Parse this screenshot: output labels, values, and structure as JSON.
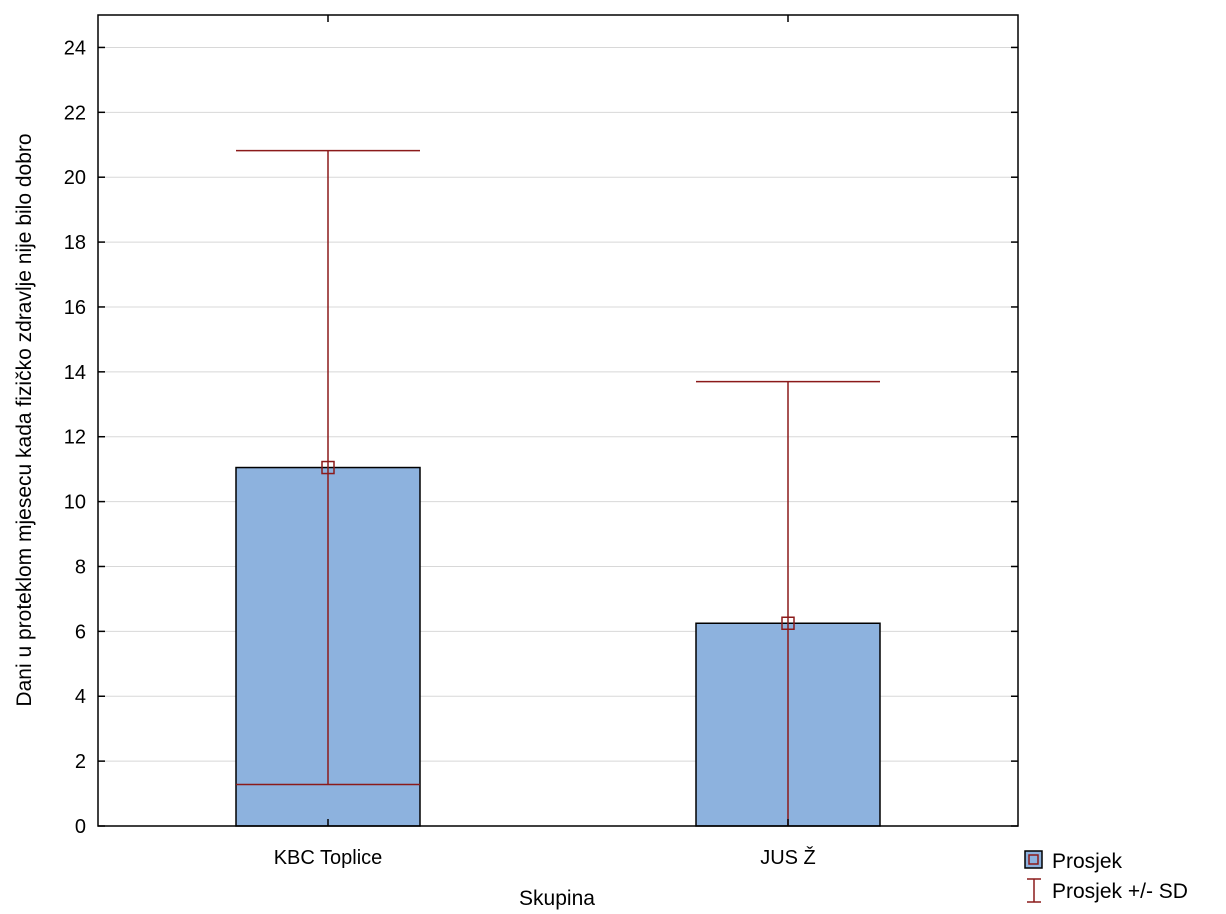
{
  "chart_data": {
    "type": "bar",
    "title": "",
    "xlabel": "Skupina",
    "ylabel": "Dani u proteklom mjesecu kada fizičko zdravlje nije bilo dobro",
    "categories": [
      "KBC Toplice",
      "JUS Ž"
    ],
    "ylim": [
      0,
      25
    ],
    "yticks": [
      0,
      2,
      4,
      6,
      8,
      10,
      12,
      14,
      16,
      18,
      20,
      22,
      24
    ],
    "grid": true,
    "legend_position": "bottom-right",
    "series": [
      {
        "name": "Prosjek",
        "values": [
          11.05,
          6.25
        ],
        "error_low": [
          1.28,
          0
        ],
        "error_high": [
          20.82,
          13.7
        ],
        "error_name": "Prosjek +/- SD"
      }
    ],
    "colors": {
      "bar_fill": "#8db2de",
      "bar_stroke": "#000000",
      "error": "#8b1a1a",
      "grid": "#d8d8d8"
    }
  }
}
